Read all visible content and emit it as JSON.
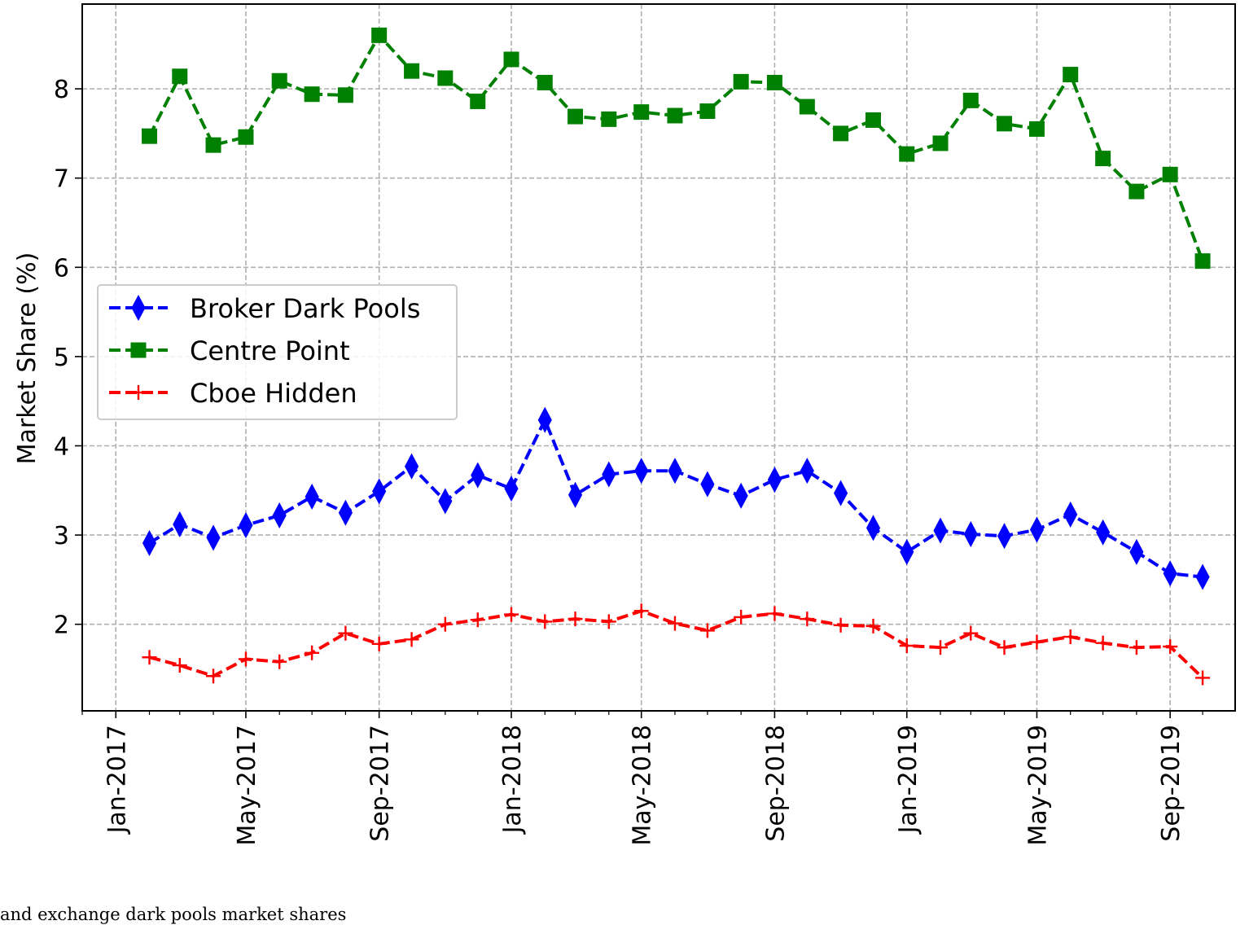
{
  "caption": "and exchange dark pools market shares",
  "chart_data": {
    "type": "line",
    "xlabel": "",
    "ylabel": "Market Share (%)",
    "x_tick_labels": [
      "Jan-2017",
      "May-2017",
      "Sep-2017",
      "Jan-2018",
      "May-2018",
      "Sep-2018",
      "Jan-2019",
      "May-2019",
      "Sep-2019"
    ],
    "y_ticks": [
      2,
      3,
      4,
      5,
      6,
      7,
      8
    ],
    "xlim": [
      "2016-12-01",
      "2019-10-31"
    ],
    "ylim": [
      1.03,
      8.95
    ],
    "grid": true,
    "legend_position": "center-left",
    "x": [
      "2017-02-01",
      "2017-03-01",
      "2017-04-01",
      "2017-05-01",
      "2017-06-01",
      "2017-07-01",
      "2017-08-01",
      "2017-09-01",
      "2017-10-01",
      "2017-11-01",
      "2017-12-01",
      "2018-01-01",
      "2018-02-01",
      "2018-03-01",
      "2018-04-01",
      "2018-05-01",
      "2018-06-01",
      "2018-07-01",
      "2018-08-01",
      "2018-09-01",
      "2018-10-01",
      "2018-11-01",
      "2018-12-01",
      "2019-01-01",
      "2019-02-01",
      "2019-03-01",
      "2019-04-01",
      "2019-05-01",
      "2019-06-01",
      "2019-07-01",
      "2019-08-01",
      "2019-09-01",
      "2019-10-01"
    ],
    "series": [
      {
        "name": "Broker Dark Pools",
        "color": "#0000ff",
        "marker": "diamond",
        "values": [
          2.91,
          3.12,
          2.97,
          3.11,
          3.22,
          3.43,
          3.25,
          3.49,
          3.77,
          3.38,
          3.67,
          3.52,
          4.29,
          3.45,
          3.68,
          3.72,
          3.72,
          3.57,
          3.44,
          3.62,
          3.72,
          3.47,
          3.08,
          2.81,
          3.05,
          3.01,
          2.99,
          3.06,
          3.23,
          3.03,
          2.81,
          2.57,
          2.53
        ]
      },
      {
        "name": "Centre Point",
        "color": "#008000",
        "marker": "square",
        "values": [
          7.47,
          8.14,
          7.37,
          7.46,
          8.09,
          7.94,
          7.93,
          8.6,
          8.2,
          8.12,
          7.86,
          8.33,
          8.07,
          7.69,
          7.66,
          7.74,
          7.7,
          7.75,
          8.08,
          8.07,
          7.8,
          7.5,
          7.65,
          7.27,
          7.39,
          7.87,
          7.61,
          7.55,
          8.16,
          7.22,
          6.85,
          7.04,
          6.07
        ]
      },
      {
        "name": "Cboe Hidden",
        "color": "#ff0000",
        "marker": "plus",
        "values": [
          1.63,
          1.54,
          1.42,
          1.61,
          1.58,
          1.68,
          1.9,
          1.78,
          1.83,
          2.0,
          2.05,
          2.11,
          2.03,
          2.06,
          2.03,
          2.15,
          2.01,
          1.93,
          2.08,
          2.12,
          2.06,
          1.99,
          1.98,
          1.76,
          1.74,
          1.9,
          1.74,
          1.8,
          1.86,
          1.79,
          1.74,
          1.75,
          1.4
        ]
      }
    ]
  }
}
